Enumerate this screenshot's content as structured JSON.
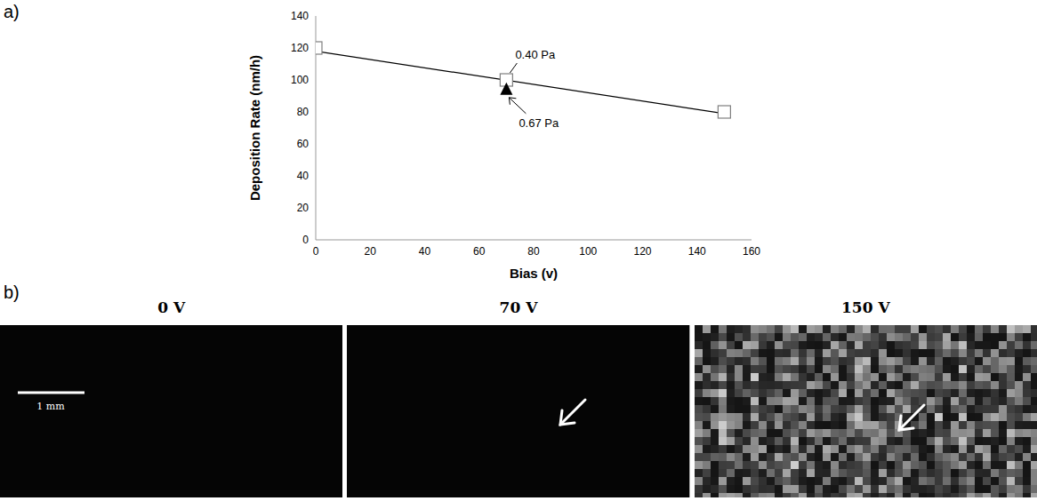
{
  "chart_data": {
    "type": "scatter",
    "panel": "a)",
    "x_label": "Bias (v)",
    "y_label": "Deposition Rate (nm/h)",
    "xlim": [
      0,
      160
    ],
    "xticks": [
      0,
      20,
      40,
      60,
      80,
      100,
      120,
      140,
      160
    ],
    "ylim": [
      0,
      140
    ],
    "yticks": [
      0,
      20,
      40,
      60,
      80,
      100,
      120,
      140
    ],
    "grid": false,
    "series": [
      {
        "type": "line",
        "marker": "none",
        "color": "#000000",
        "x": [
          0,
          150
        ],
        "values": [
          118,
          79
        ]
      },
      {
        "type": "scatter",
        "marker": "square",
        "color": "#7f7f7f",
        "x": [
          0,
          70,
          150
        ],
        "values": [
          120,
          100,
          80
        ]
      },
      {
        "type": "scatter",
        "marker": "triangle",
        "color": "#000000",
        "x": [
          70
        ],
        "values": [
          94
        ]
      }
    ],
    "annotations": [
      {
        "text": "0.40 Pa",
        "x": 70,
        "y": 100
      },
      {
        "text": "0.67 Pa",
        "x": 70,
        "y": 94
      }
    ]
  },
  "images": {
    "panel": "b)",
    "scale_bar": "1 mm",
    "items": [
      {
        "title": "0 V",
        "arrow": false
      },
      {
        "title": "70 V",
        "arrow": true
      },
      {
        "title": "150 V",
        "arrow": true
      }
    ]
  }
}
